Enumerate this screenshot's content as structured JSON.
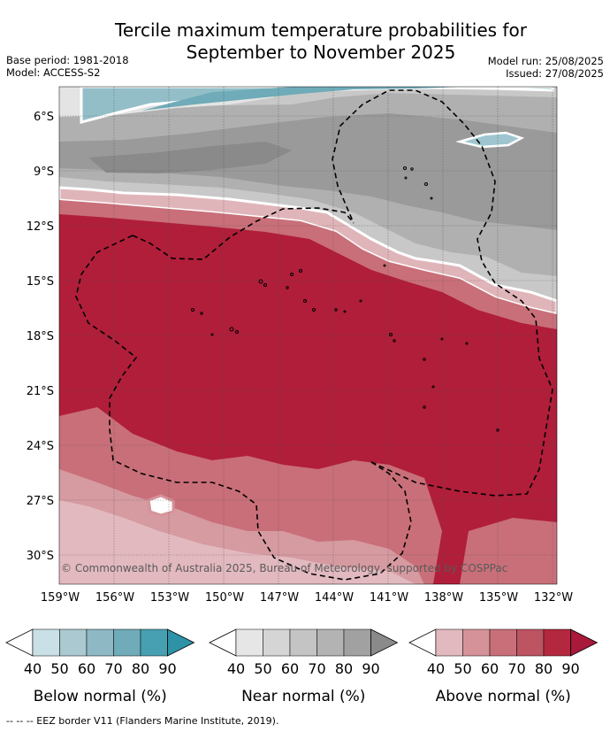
{
  "title_line1": "Tercile maximum temperature probabilities for",
  "title_line2": "September to November 2025",
  "base_period": "Base period: 1981-2018",
  "model": "Model: ACCESS-S2",
  "model_run": "Model run: 25/08/2025",
  "issued": "Issued: 27/08/2025",
  "copyright": "© Commonwealth of Australia 2025, Bureau of Meteorology, supported by COSPPac",
  "footnote": "--  --  -- EEZ border V11 (Flanders Marine Institute, 2019).",
  "lat_labels": [
    "6°S",
    "9°S",
    "12°S",
    "15°S",
    "18°S",
    "21°S",
    "24°S",
    "27°S",
    "30°S"
  ],
  "lon_labels": [
    "159°W",
    "156°W",
    "153°W",
    "150°W",
    "147°W",
    "144°W",
    "141°W",
    "138°W",
    "135°W",
    "132°W"
  ],
  "legend": [
    {
      "title": "Below normal (%)",
      "ticks": [
        "40",
        "50",
        "60",
        "70",
        "80",
        "90"
      ],
      "colors": [
        "#ffffff",
        "#c9e0e6",
        "#aac9d1",
        "#8db8c4",
        "#6fabb8",
        "#47a0b2",
        "#2e93a7"
      ]
    },
    {
      "title": "Near normal (%)",
      "ticks": [
        "40",
        "50",
        "60",
        "70",
        "80",
        "90"
      ],
      "colors": [
        "#ffffff",
        "#e6e6e6",
        "#d5d5d5",
        "#c4c4c4",
        "#b3b3b3",
        "#a1a1a1",
        "#8a8a8a"
      ]
    },
    {
      "title": "Above normal (%)",
      "ticks": [
        "40",
        "50",
        "60",
        "70",
        "80",
        "90"
      ],
      "colors": [
        "#ffffff",
        "#e2b9bf",
        "#d59399",
        "#c96f79",
        "#bd5462",
        "#b3283e",
        "#a8193a"
      ]
    }
  ]
}
